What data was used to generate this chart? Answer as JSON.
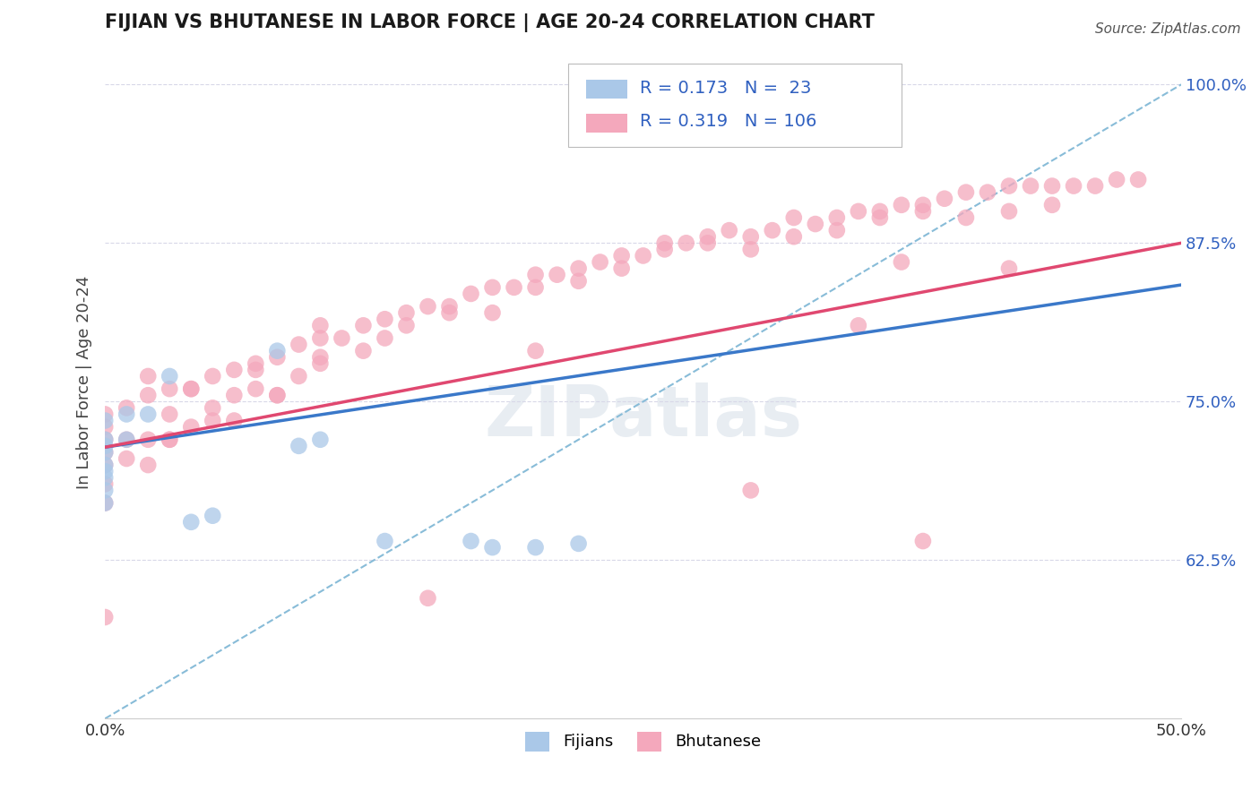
{
  "title": "FIJIAN VS BHUTANESE IN LABOR FORCE | AGE 20-24 CORRELATION CHART",
  "source_text": "Source: ZipAtlas.com",
  "ylabel": "In Labor Force | Age 20-24",
  "xlim": [
    0.0,
    0.5
  ],
  "ylim": [
    0.5,
    1.03
  ],
  "xticks": [
    0.0,
    0.5
  ],
  "xticklabels": [
    "0.0%",
    "50.0%"
  ],
  "ytick_positions": [
    0.625,
    0.75,
    0.875,
    1.0
  ],
  "ytick_labels": [
    "62.5%",
    "75.0%",
    "87.5%",
    "100.0%"
  ],
  "fijian_R": 0.173,
  "fijian_N": 23,
  "bhutanese_R": 0.319,
  "bhutanese_N": 106,
  "fijian_color": "#aac8e8",
  "bhutanese_color": "#f4a8bc",
  "fijian_line_color": "#3a78c9",
  "bhutanese_line_color": "#e04870",
  "trendline_dash_color": "#88bcd8",
  "background_color": "#ffffff",
  "grid_color": "#d8d8e8",
  "title_color": "#1a1a1a",
  "ytick_color": "#3060c0",
  "xtick_color": "#333333",
  "fijian_scatter_x": [
    0.0,
    0.0,
    0.0,
    0.0,
    0.0,
    0.0,
    0.0,
    0.0,
    0.0,
    0.01,
    0.01,
    0.02,
    0.03,
    0.04,
    0.05,
    0.08,
    0.09,
    0.1,
    0.13,
    0.17,
    0.18,
    0.2,
    0.22
  ],
  "fijian_scatter_y": [
    0.735,
    0.72,
    0.715,
    0.71,
    0.7,
    0.695,
    0.69,
    0.68,
    0.67,
    0.74,
    0.72,
    0.74,
    0.77,
    0.655,
    0.66,
    0.79,
    0.715,
    0.72,
    0.64,
    0.64,
    0.635,
    0.635,
    0.638
  ],
  "bhutanese_scatter_x": [
    0.0,
    0.0,
    0.0,
    0.0,
    0.0,
    0.0,
    0.0,
    0.0,
    0.01,
    0.01,
    0.01,
    0.02,
    0.02,
    0.02,
    0.03,
    0.03,
    0.03,
    0.04,
    0.04,
    0.05,
    0.05,
    0.06,
    0.06,
    0.07,
    0.07,
    0.08,
    0.08,
    0.09,
    0.09,
    0.1,
    0.1,
    0.11,
    0.12,
    0.13,
    0.13,
    0.14,
    0.15,
    0.16,
    0.17,
    0.18,
    0.19,
    0.2,
    0.21,
    0.22,
    0.23,
    0.24,
    0.25,
    0.26,
    0.27,
    0.28,
    0.29,
    0.3,
    0.31,
    0.32,
    0.33,
    0.34,
    0.35,
    0.36,
    0.37,
    0.38,
    0.39,
    0.4,
    0.41,
    0.42,
    0.43,
    0.44,
    0.45,
    0.46,
    0.47,
    0.48,
    0.02,
    0.03,
    0.04,
    0.05,
    0.06,
    0.07,
    0.08,
    0.1,
    0.12,
    0.14,
    0.16,
    0.18,
    0.2,
    0.22,
    0.24,
    0.26,
    0.28,
    0.3,
    0.32,
    0.34,
    0.36,
    0.38,
    0.4,
    0.42,
    0.44,
    0.2,
    0.35,
    0.37,
    0.38,
    0.3,
    0.1,
    0.15,
    0.42
  ],
  "bhutanese_scatter_y": [
    0.74,
    0.73,
    0.72,
    0.71,
    0.7,
    0.685,
    0.67,
    0.58,
    0.745,
    0.72,
    0.705,
    0.755,
    0.72,
    0.7,
    0.76,
    0.74,
    0.72,
    0.76,
    0.73,
    0.77,
    0.745,
    0.775,
    0.735,
    0.775,
    0.76,
    0.785,
    0.755,
    0.795,
    0.77,
    0.8,
    0.78,
    0.8,
    0.81,
    0.815,
    0.8,
    0.82,
    0.825,
    0.825,
    0.835,
    0.84,
    0.84,
    0.85,
    0.85,
    0.855,
    0.86,
    0.865,
    0.865,
    0.875,
    0.875,
    0.88,
    0.885,
    0.88,
    0.885,
    0.895,
    0.89,
    0.895,
    0.9,
    0.9,
    0.905,
    0.905,
    0.91,
    0.915,
    0.915,
    0.92,
    0.92,
    0.92,
    0.92,
    0.92,
    0.925,
    0.925,
    0.77,
    0.72,
    0.76,
    0.735,
    0.755,
    0.78,
    0.755,
    0.785,
    0.79,
    0.81,
    0.82,
    0.82,
    0.84,
    0.845,
    0.855,
    0.87,
    0.875,
    0.87,
    0.88,
    0.885,
    0.895,
    0.9,
    0.895,
    0.9,
    0.905,
    0.79,
    0.81,
    0.86,
    0.64,
    0.68,
    0.81,
    0.595,
    0.855
  ],
  "ref_line_x": [
    0.0,
    0.5
  ],
  "ref_line_y": [
    0.5,
    1.0
  ],
  "fijian_trendline": [
    0.0,
    0.5,
    0.714,
    0.842
  ],
  "bhutanese_trendline": [
    0.0,
    0.5,
    0.714,
    0.875
  ]
}
